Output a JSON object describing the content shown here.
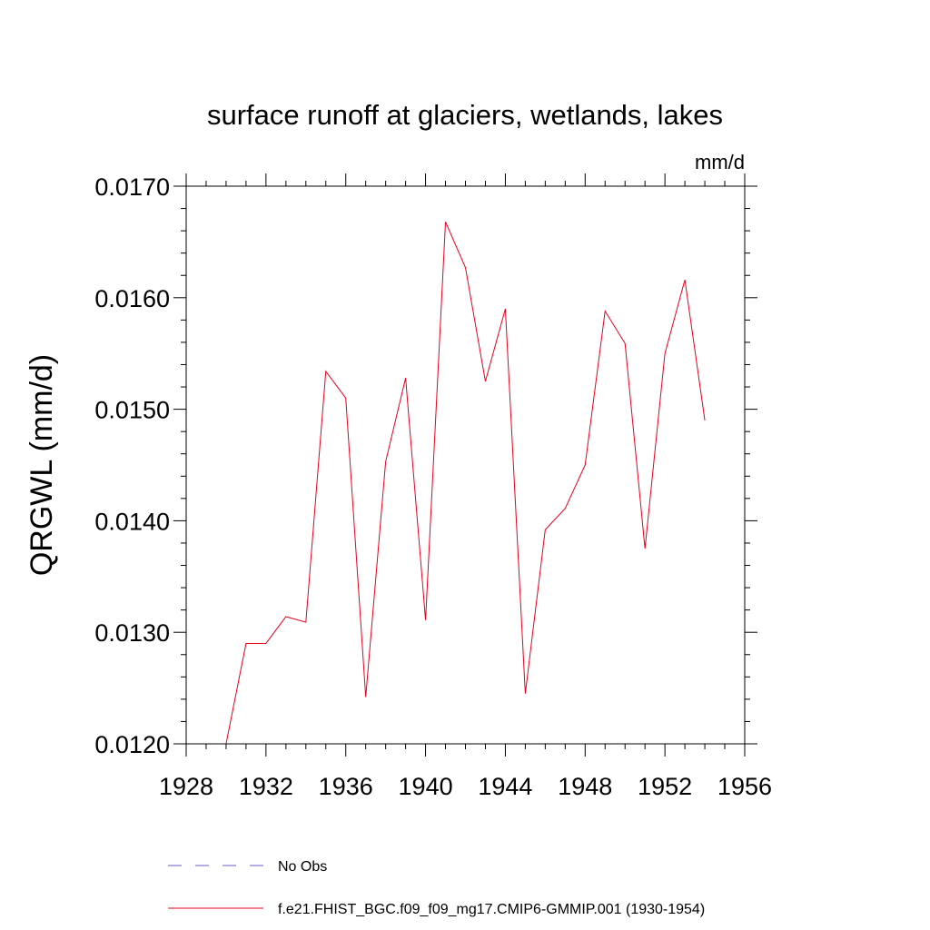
{
  "chart_data": {
    "type": "line",
    "title": "surface runoff at glaciers, wetlands, lakes",
    "units": "mm/d",
    "ylabel": "QRGWL  (mm/d)",
    "xlabel": "",
    "xlim": [
      1928,
      1956
    ],
    "ylim": [
      0.012,
      0.017
    ],
    "x_ticks": [
      1928,
      1932,
      1936,
      1940,
      1944,
      1948,
      1952,
      1956
    ],
    "y_ticks": [
      0.012,
      0.013,
      0.014,
      0.015,
      0.016,
      0.017
    ],
    "x_tick_labels": [
      "1928",
      "1932",
      "1936",
      "1940",
      "1944",
      "1948",
      "1952",
      "1956"
    ],
    "y_tick_labels": [
      "0.0120",
      "0.0130",
      "0.0140",
      "0.0150",
      "0.0160",
      "0.0170"
    ],
    "grid": false,
    "legend_placement": "bottom",
    "series": [
      {
        "name": "No Obs",
        "style": "dashed",
        "color": "#6a5acd",
        "x": [],
        "values": []
      },
      {
        "name": "f.e21.FHIST_BGC.f09_f09_mg17.CMIP6-GMMIP.001 (1930-1954)",
        "style": "solid",
        "color": "#e8001c",
        "x": [
          1930,
          1931,
          1932,
          1933,
          1934,
          1935,
          1936,
          1937,
          1938,
          1939,
          1940,
          1941,
          1942,
          1943,
          1944,
          1945,
          1946,
          1947,
          1948,
          1949,
          1950,
          1951,
          1952,
          1953,
          1954
        ],
        "values": [
          0.012,
          0.0129,
          0.0129,
          0.01314,
          0.01309,
          0.01534,
          0.0151,
          0.01242,
          0.01453,
          0.01528,
          0.01311,
          0.01668,
          0.01627,
          0.01525,
          0.0159,
          0.01245,
          0.01392,
          0.01411,
          0.0145,
          0.01588,
          0.01559,
          0.01375,
          0.0155,
          0.01616,
          0.0149
        ]
      }
    ]
  }
}
